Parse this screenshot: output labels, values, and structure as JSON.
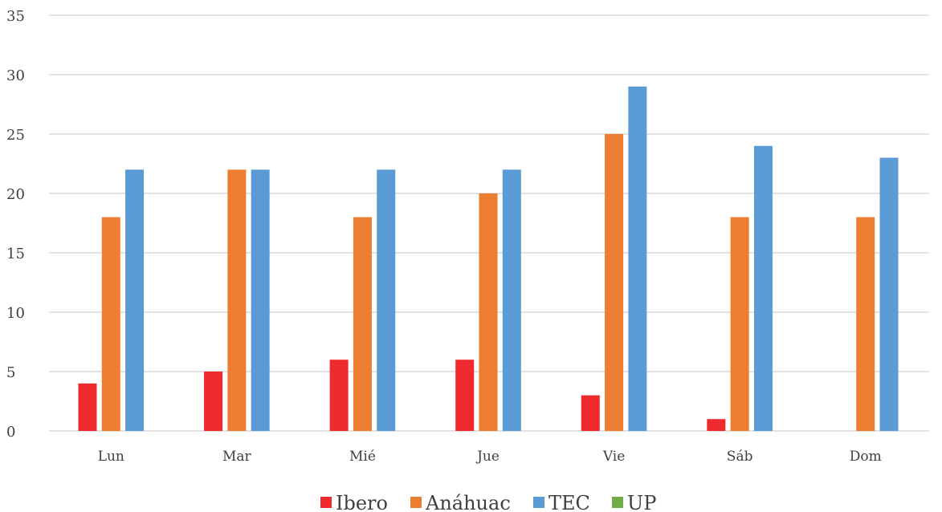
{
  "chart_data": {
    "type": "bar",
    "title": "",
    "xlabel": "",
    "ylabel": "",
    "categories": [
      "Lun",
      "Mar",
      "Mié",
      "Jue",
      "Vie",
      "Sáb",
      "Dom"
    ],
    "series": [
      {
        "name": "Ibero",
        "color": "#ee2a2f",
        "values": [
          4,
          5,
          6,
          6,
          3,
          1,
          0
        ]
      },
      {
        "name": "Anáhuac",
        "color": "#ed7d31",
        "values": [
          18,
          22,
          18,
          20,
          25,
          18,
          18
        ]
      },
      {
        "name": "TEC",
        "color": "#5b9bd5",
        "values": [
          22,
          22,
          22,
          22,
          29,
          24,
          23
        ]
      },
      {
        "name": "UP",
        "color": "#70ad47",
        "values": [
          0,
          0,
          0,
          0,
          0,
          0,
          0
        ]
      }
    ],
    "ylim": [
      0,
      35
    ],
    "yticks": [
      0,
      5,
      10,
      15,
      20,
      25,
      30,
      35
    ],
    "grid": true,
    "legend_position": "bottom"
  }
}
